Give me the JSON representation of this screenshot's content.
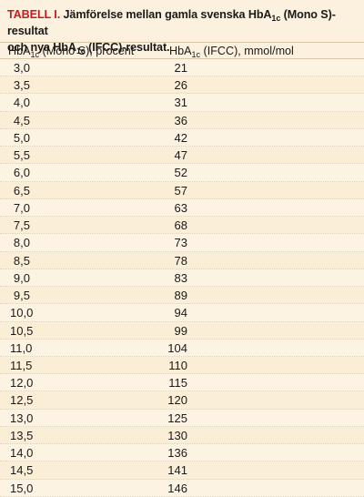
{
  "caption": {
    "label": "TABELL I.",
    "line1_pre": "Jämförelse mellan gamla svenska HbA",
    "line1_sub": "1c",
    "line1_post": "(Mono S)-resultat",
    "line2_pre": "och nya HbA",
    "line2_sub": "1c",
    "line2_post": "(IFCC)-resultat."
  },
  "columns": {
    "col_a_pre": "HbA",
    "col_a_sub": "1c",
    "col_a_post": " (Mono S), procent",
    "col_b_pre": "HbA",
    "col_b_sub": "1c",
    "col_b_post": " (IFCC), mmol/mol"
  },
  "rows": [
    {
      "mono_s": "3,0",
      "ifcc": "21"
    },
    {
      "mono_s": "3,5",
      "ifcc": "26"
    },
    {
      "mono_s": "4,0",
      "ifcc": "31"
    },
    {
      "mono_s": "4,5",
      "ifcc": "36"
    },
    {
      "mono_s": "5,0",
      "ifcc": "42"
    },
    {
      "mono_s": "5,5",
      "ifcc": "47"
    },
    {
      "mono_s": "6,0",
      "ifcc": "52"
    },
    {
      "mono_s": "6,5",
      "ifcc": "57"
    },
    {
      "mono_s": "7,0",
      "ifcc": "63"
    },
    {
      "mono_s": "7,5",
      "ifcc": "68"
    },
    {
      "mono_s": "8,0",
      "ifcc": "73"
    },
    {
      "mono_s": "8,5",
      "ifcc": "78"
    },
    {
      "mono_s": "9,0",
      "ifcc": "83"
    },
    {
      "mono_s": "9,5",
      "ifcc": "89"
    },
    {
      "mono_s": "10,0",
      "ifcc": "94"
    },
    {
      "mono_s": "10,5",
      "ifcc": "99"
    },
    {
      "mono_s": "11,0",
      "ifcc": "104"
    },
    {
      "mono_s": "11,5",
      "ifcc": "110"
    },
    {
      "mono_s": "12,0",
      "ifcc": "115"
    },
    {
      "mono_s": "12,5",
      "ifcc": "120"
    },
    {
      "mono_s": "13,0",
      "ifcc": "125"
    },
    {
      "mono_s": "13,5",
      "ifcc": "130"
    },
    {
      "mono_s": "14,0",
      "ifcc": "136"
    },
    {
      "mono_s": "14,5",
      "ifcc": "141"
    },
    {
      "mono_s": "15,0",
      "ifcc": "146"
    }
  ],
  "colors": {
    "background": "#fcf1de",
    "label_red": "#c8191f",
    "rule": "#d9c8a8"
  }
}
